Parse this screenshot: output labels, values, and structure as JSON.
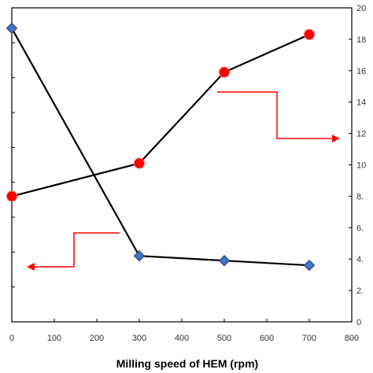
{
  "chart_data": {
    "type": "line",
    "title": "",
    "xlabel": "Milling speed of HEM (rpm)",
    "x_ticks": [
      "0",
      "100",
      "200",
      "300",
      "400",
      "500",
      "600",
      "700",
      "800"
    ],
    "xlim": [
      0,
      800
    ],
    "y2_ticks": [
      "0",
      "2.",
      "4.",
      "6.",
      "8.",
      "10",
      "12",
      "14",
      "16",
      "18",
      "20"
    ],
    "y2lim": [
      0,
      20
    ],
    "grid": false,
    "series": [
      {
        "axis": "left",
        "marker": "diamond",
        "color": "#4472c4",
        "line_color": "#000000",
        "x": [
          0,
          300,
          500,
          700
        ],
        "y2_equiv": [
          18.7,
          4.2,
          3.9,
          3.6
        ]
      },
      {
        "axis": "right",
        "marker": "circle",
        "color": "#ff0000",
        "line_color": "#000000",
        "x": [
          0,
          300,
          500,
          700
        ],
        "y2_equiv": [
          8.0,
          10.1,
          15.9,
          18.3
        ]
      }
    ],
    "annotations": [
      {
        "type": "arrow",
        "direction": "left",
        "points_to": "left axis",
        "color": "#ff0000"
      },
      {
        "type": "arrow",
        "direction": "right",
        "points_to": "right axis",
        "color": "#ff0000"
      }
    ]
  }
}
